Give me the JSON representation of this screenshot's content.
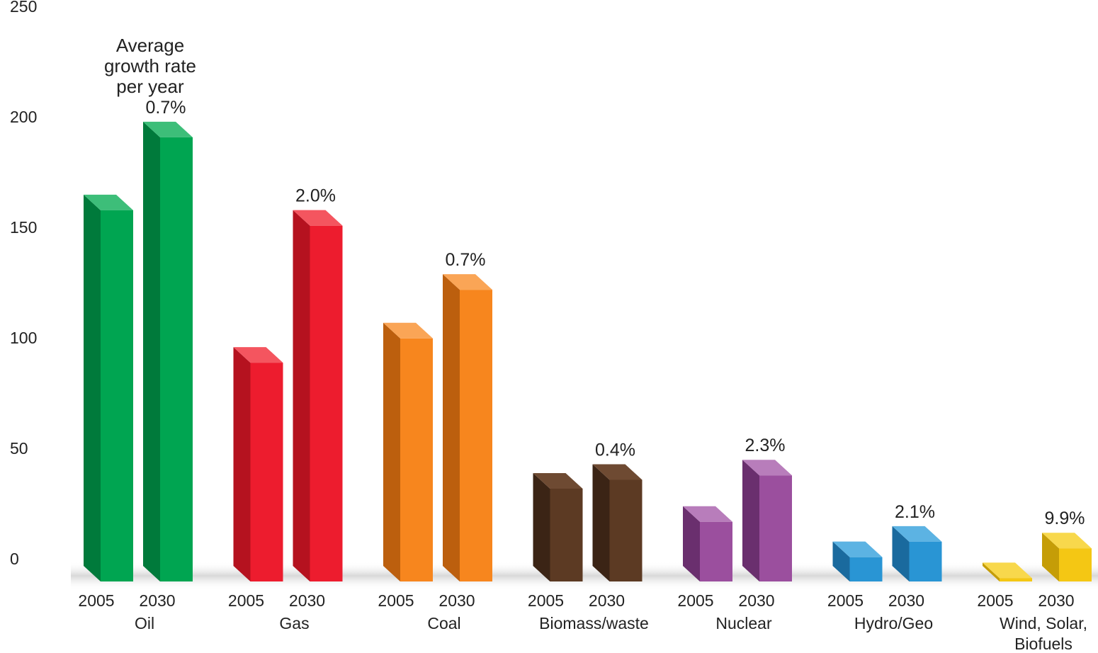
{
  "chart_data": {
    "type": "bar",
    "title": "",
    "xlabel": "",
    "ylabel": "",
    "ylim": [
      0,
      250
    ],
    "yticks": [
      "0",
      "50",
      "100",
      "150",
      "200",
      "250"
    ],
    "grid": false,
    "legend": "none",
    "annotation": [
      "Average",
      "growth rate",
      "per year"
    ],
    "categories": [
      {
        "name": [
          "Oil"
        ],
        "growth": "0.7%",
        "values": [
          {
            "year": "2005",
            "value": 168
          },
          {
            "year": "2030",
            "value": 201
          }
        ],
        "colors": {
          "front": "#00A551",
          "side": "#007A3B",
          "top": "#3DBE79"
        }
      },
      {
        "name": [
          "Gas"
        ],
        "growth": "2.0%",
        "values": [
          {
            "year": "2005",
            "value": 99
          },
          {
            "year": "2030",
            "value": 161
          }
        ],
        "colors": {
          "front": "#ED1C2E",
          "side": "#B5121F",
          "top": "#F4555F"
        }
      },
      {
        "name": [
          "Coal"
        ],
        "growth": "0.7%",
        "values": [
          {
            "year": "2005",
            "value": 110
          },
          {
            "year": "2030",
            "value": 132
          }
        ],
        "colors": {
          "front": "#F7861E",
          "side": "#BC5F0E",
          "top": "#FAA556"
        }
      },
      {
        "name": [
          "Biomass/waste"
        ],
        "growth": "0.4%",
        "values": [
          {
            "year": "2005",
            "value": 42
          },
          {
            "year": "2030",
            "value": 46
          }
        ],
        "colors": {
          "front": "#5C3A23",
          "side": "#3B2415",
          "top": "#6E4A32"
        }
      },
      {
        "name": [
          "Nuclear"
        ],
        "growth": "2.3%",
        "values": [
          {
            "year": "2005",
            "value": 27
          },
          {
            "year": "2030",
            "value": 48
          }
        ],
        "colors": {
          "front": "#9B4F9E",
          "side": "#6A2F6E",
          "top": "#B87DBB"
        }
      },
      {
        "name": [
          "Hydro/Geo"
        ],
        "growth": "2.1%",
        "values": [
          {
            "year": "2005",
            "value": 11
          },
          {
            "year": "2030",
            "value": 18
          }
        ],
        "colors": {
          "front": "#2995D4",
          "side": "#1A6A9E",
          "top": "#5CB3E3"
        }
      },
      {
        "name": [
          "Wind, Solar,",
          "Biofuels"
        ],
        "growth": "9.9%",
        "values": [
          {
            "year": "2005",
            "value": 1.5
          },
          {
            "year": "2030",
            "value": 15
          }
        ],
        "colors": {
          "front": "#F4C714",
          "side": "#C59D07",
          "top": "#F8D84C"
        }
      }
    ]
  }
}
